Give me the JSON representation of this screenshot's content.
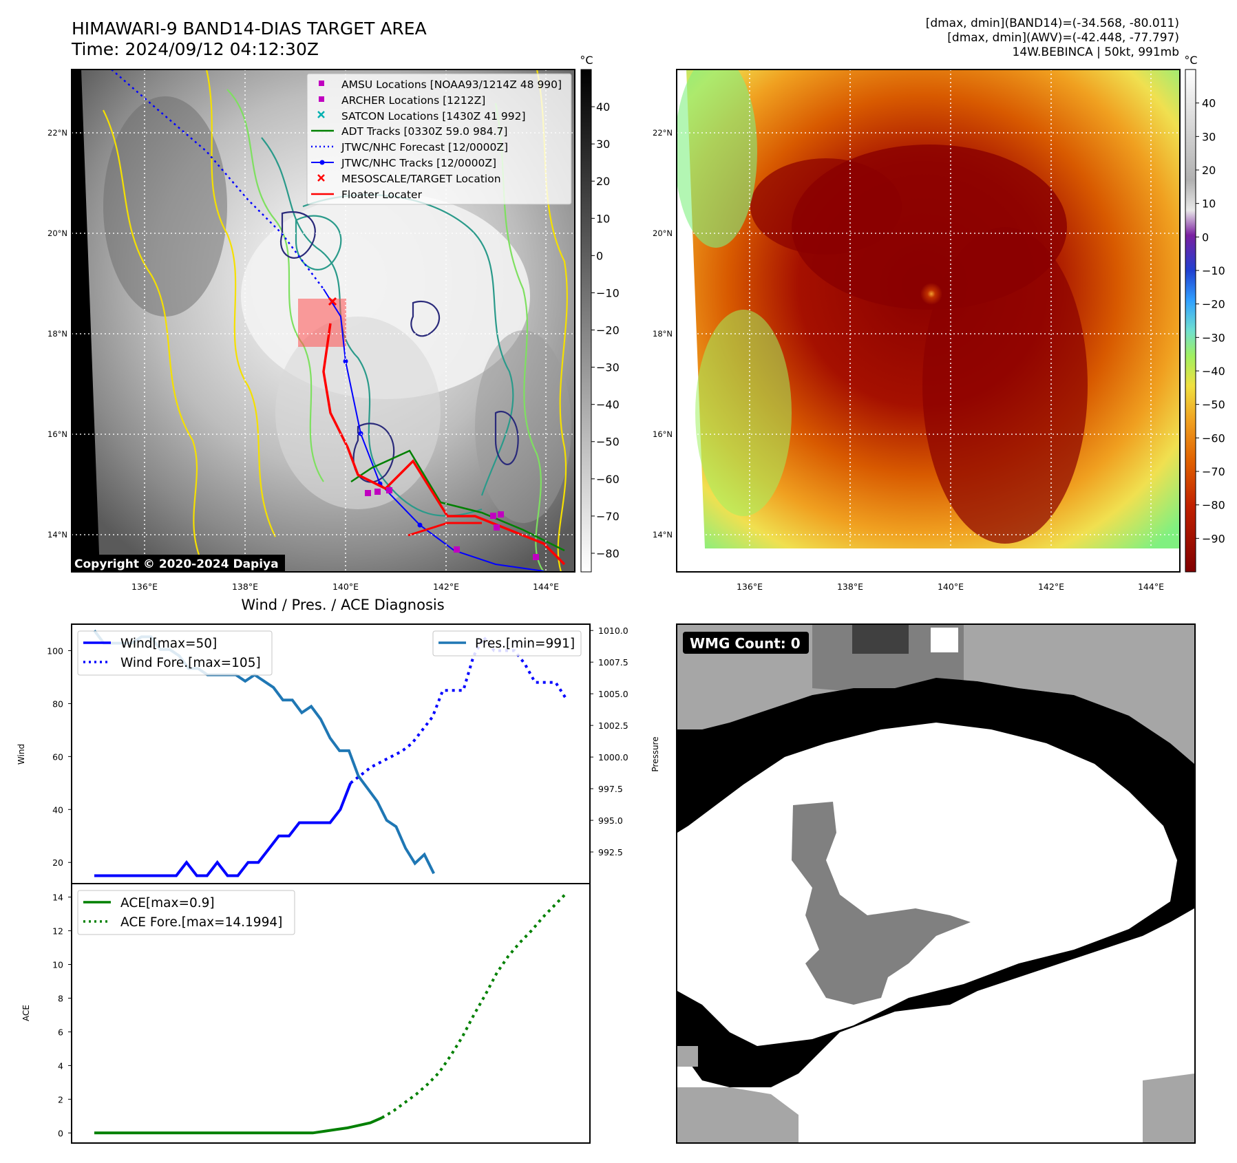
{
  "header": {
    "title_line1": "HIMAWARI-9 BAND14-DIAS TARGET AREA",
    "title_line2": "Time: 2024/09/12 04:12:30Z",
    "right_line1": "[dmax, dmin](BAND14)=(-34.568, -80.011)",
    "right_line2": "[dmax, dmin](AWV)=(-42.448, -77.797)",
    "right_line3": "14W.BEBINCA | 50kt, 991mb"
  },
  "copyright": "Copyright © 2020-2024 Dapiya",
  "colorbar_unit": "°C",
  "map": {
    "lon_ticks": [
      "136°E",
      "138°E",
      "140°E",
      "142°E",
      "144°E"
    ],
    "lat_ticks": [
      "22°N",
      "20°N",
      "18°N",
      "16°N",
      "14°N"
    ]
  },
  "colorbar_left_ticks": [
    "40",
    "30",
    "20",
    "10",
    "0",
    "−10",
    "−20",
    "−30",
    "−40",
    "−50",
    "−60",
    "−70",
    "−80"
  ],
  "colorbar_right_ticks": [
    "40",
    "30",
    "20",
    "10",
    "0",
    "−10",
    "−20",
    "−30",
    "−40",
    "−50",
    "−60",
    "−70",
    "−80",
    "−90"
  ],
  "legend": {
    "amsu": "AMSU Locations [NOAA93/1214Z 48 990]",
    "archer": "ARCHER Locations [1212Z]",
    "satcon": "SATCON Locations [1430Z 41 992]",
    "adt": "ADT Tracks [0330Z 59.0 984.7]",
    "forecast": "JTWC/NHC Forecast [12/0000Z]",
    "tracks": "JTWC/NHC Tracks [12/0000Z]",
    "meso": "MESOSCALE/TARGET Location",
    "floater": "Floater Locater"
  },
  "colors": {
    "amsu": "#c000c0",
    "archer": "#c000c0",
    "satcon": "#00b0b0",
    "adt": "#008000",
    "forecast": "#0000ff",
    "tracks": "#0000ff",
    "meso": "#ff0000",
    "floater": "#ff0000",
    "wind": "#0000ff",
    "pres": "#1f77b4",
    "ace": "#008000"
  },
  "wmg_label": "WMG Count: 0",
  "chart_data": [
    {
      "type": "line",
      "title": "Wind / Pres. / ACE Diagnosis",
      "xlabel": "",
      "ylabel": "Wind",
      "ylabel_right": "Pressure",
      "ylim": [
        12,
        110
      ],
      "ylim_right": [
        990.0,
        1010.5
      ],
      "yticks": [
        "20",
        "40",
        "60",
        "80",
        "100"
      ],
      "yticks_right": [
        "992.5",
        "995.0",
        "997.5",
        "1000.0",
        "1002.5",
        "1005.0",
        "1007.5",
        "1010.0"
      ],
      "legend_wind": "Wind[max=50]",
      "legend_wind_fore": "Wind Fore.[max=105]",
      "legend_pres": "Pres.[min=991]",
      "series": [
        {
          "name": "Wind[max=50]",
          "style": "solid",
          "values": [
            15,
            15,
            15,
            15,
            15,
            15,
            15,
            15,
            15,
            20,
            15,
            15,
            20,
            15,
            15,
            20,
            20,
            25,
            30,
            30,
            35,
            35,
            35,
            35,
            40,
            50
          ]
        },
        {
          "name": "Wind Fore.[max=105]",
          "style": "dotted",
          "x_start": 25,
          "values": [
            50,
            53,
            56,
            58,
            60,
            62,
            65,
            70,
            75,
            85,
            85,
            85,
            98,
            105,
            100,
            100,
            100,
            95,
            88,
            88,
            88,
            82
          ]
        },
        {
          "name": "Pres.[min=991]",
          "axis": "right",
          "style": "solid",
          "values": [
            1010,
            1009,
            1009,
            1009,
            1009,
            1009.5,
            1009.5,
            1008.5,
            1008.5,
            1008,
            1007,
            1007,
            1006.5,
            1006.5,
            1006.5,
            1006.5,
            1006,
            1006.5,
            1006,
            1005.5,
            1004.5,
            1004.5,
            1003.5,
            1004,
            1003,
            1001.5,
            1000.5,
            1000.5,
            998.5,
            997.5,
            996.5,
            995.0,
            994.5,
            992.8,
            991.6,
            992.3,
            990.8
          ]
        }
      ]
    },
    {
      "type": "line",
      "xlabel": "",
      "ylabel": "ACE",
      "ylim": [
        -0.6,
        14.8
      ],
      "yticks": [
        "0",
        "2",
        "4",
        "6",
        "8",
        "10",
        "12",
        "14"
      ],
      "legend_ace": "ACE[max=0.9]",
      "legend_ace_fore": "ACE Fore.[max=14.1994]",
      "series": [
        {
          "name": "ACE[max=0.9]",
          "style": "solid",
          "values": [
            0,
            0,
            0,
            0,
            0,
            0,
            0,
            0,
            0,
            0,
            0,
            0,
            0,
            0,
            0,
            0,
            0,
            0,
            0,
            0,
            0.1,
            0.2,
            0.3,
            0.45,
            0.6,
            0.9
          ]
        },
        {
          "name": "ACE Fore.[max=14.1994]",
          "style": "dotted",
          "x_start": 25,
          "values": [
            0.9,
            1.3,
            1.8,
            2.3,
            2.9,
            3.6,
            4.6,
            5.7,
            7.0,
            8.2,
            9.5,
            10.5,
            11.3,
            12.0,
            12.8,
            13.5,
            14.2
          ]
        }
      ]
    }
  ]
}
